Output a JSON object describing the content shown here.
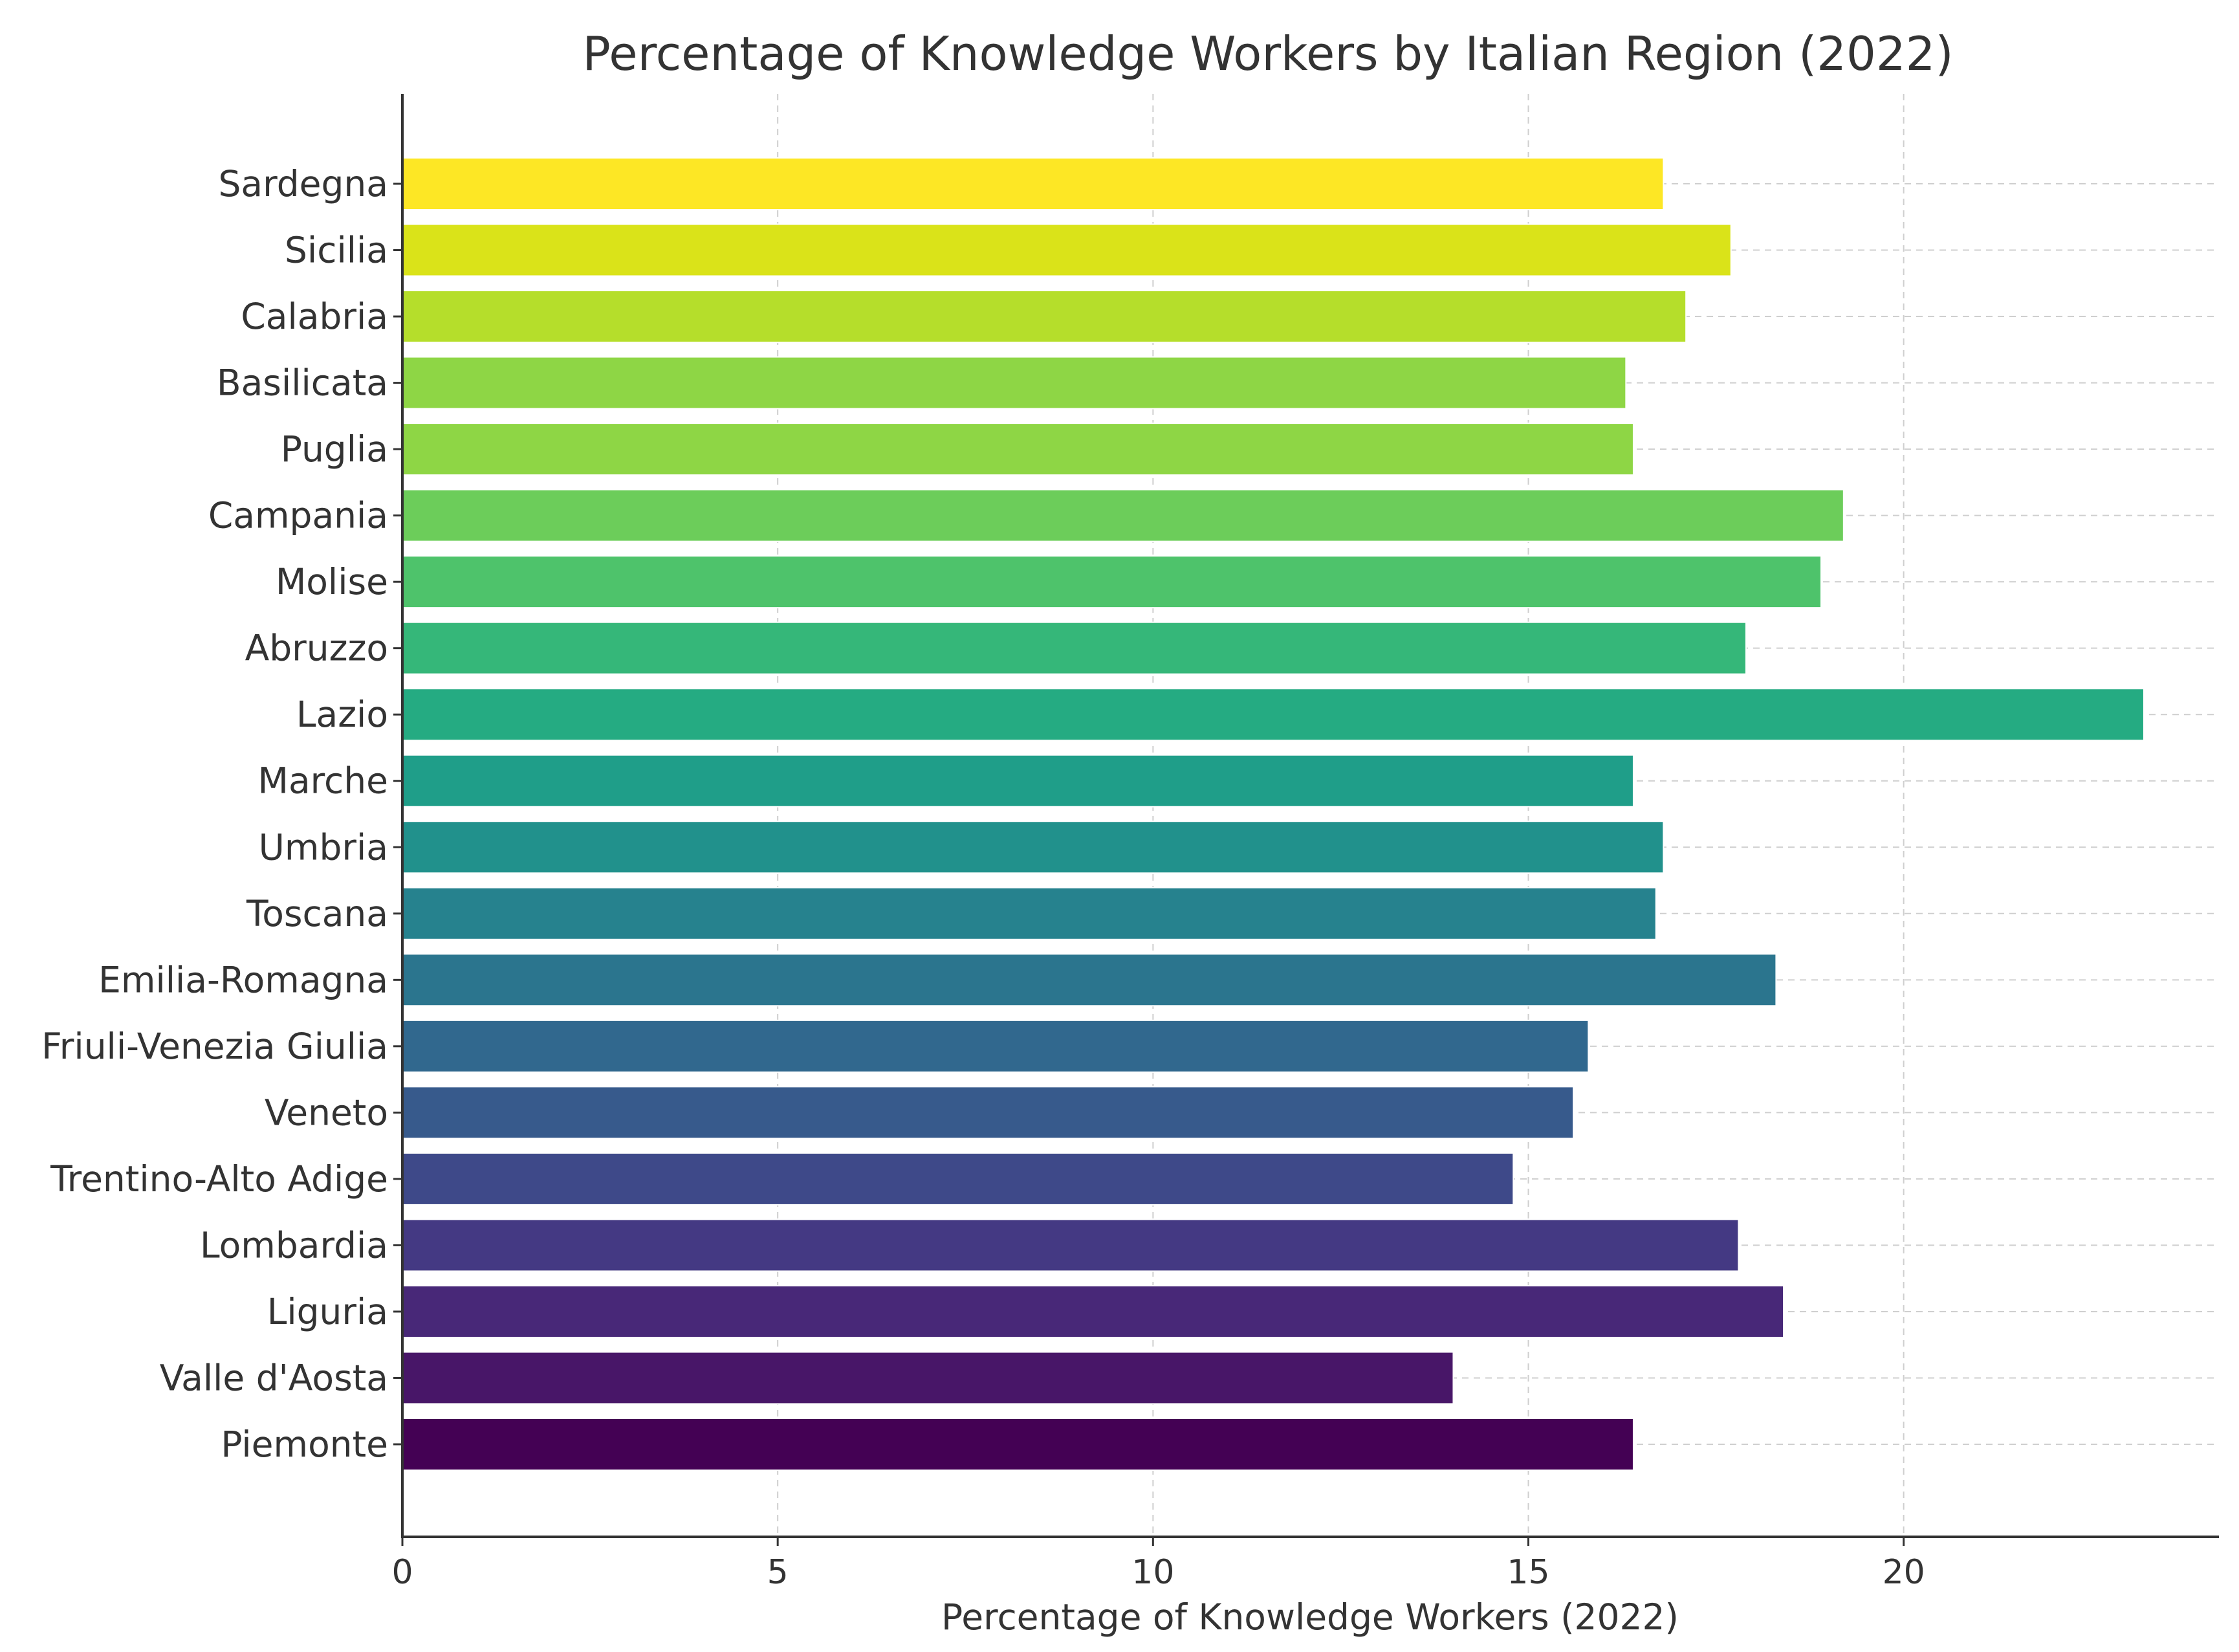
{
  "chart_data": {
    "type": "bar",
    "orientation": "horizontal",
    "title": "Percentage of Knowledge Workers by Italian Region (2022)",
    "xlabel": "Percentage of Knowledge Workers (2022)",
    "ylabel": "",
    "xlim": [
      0,
      24.2
    ],
    "xticks": [
      0,
      5,
      10,
      15,
      20
    ],
    "grid": true,
    "categories": [
      "Piemonte",
      "Valle d'Aosta",
      "Liguria",
      "Lombardia",
      "Trentino-Alto Adige",
      "Veneto",
      "Friuli-Venezia Giulia",
      "Emilia-Romagna",
      "Toscana",
      "Umbria",
      "Marche",
      "Lazio",
      "Abruzzo",
      "Molise",
      "Campania",
      "Puglia",
      "Basilicata",
      "Calabria",
      "Sicilia",
      "Sardegna"
    ],
    "values": [
      16.4,
      14.0,
      18.4,
      17.8,
      14.8,
      15.6,
      15.8,
      18.3,
      16.7,
      16.8,
      16.4,
      23.2,
      17.9,
      18.9,
      19.2,
      16.4,
      16.3,
      17.1,
      17.7,
      16.8
    ],
    "colors": [
      "#440154",
      "#481668",
      "#482878",
      "#443983",
      "#3e4989",
      "#375a8c",
      "#31688e",
      "#2b758e",
      "#26828e",
      "#21918c",
      "#1f9e89",
      "#25ab82",
      "#35b779",
      "#4ec36b",
      "#6ccd5a",
      "#8ed645",
      "#8ed645",
      "#b5de2b",
      "#dae319",
      "#fde725"
    ]
  }
}
